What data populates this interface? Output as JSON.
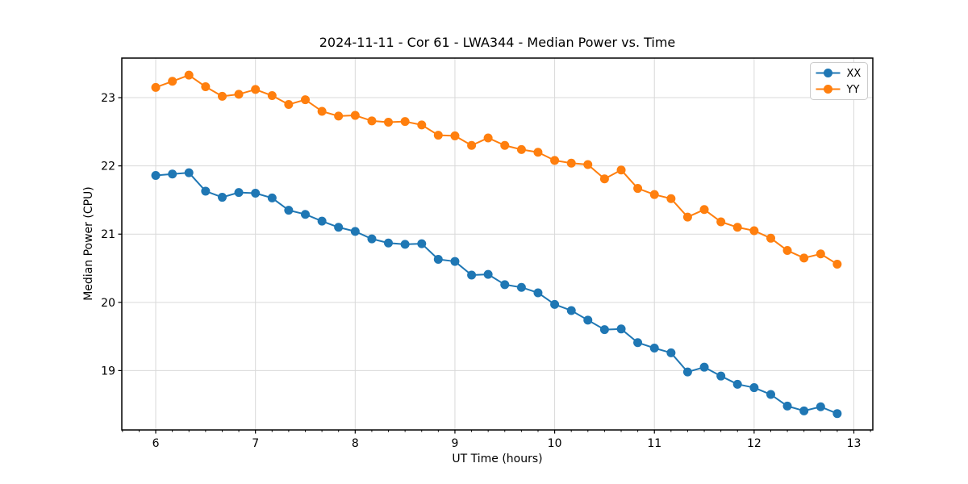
{
  "figure": {
    "title": "2024-11-11 - Cor 61 - LWA344 - Median Power vs. Time"
  },
  "chart_data": {
    "type": "line",
    "title": "2024-11-11 - Cor 61 - LWA344 - Median Power vs. Time",
    "xlabel": "UT Time (hours)",
    "ylabel": "Median Power (CPU)",
    "xlim": [
      5.66,
      13.19
    ],
    "ylim": [
      18.13,
      23.58
    ],
    "x_major_ticks": [
      6,
      7,
      8,
      9,
      10,
      11,
      12,
      13
    ],
    "x_minor_tick_step_hours": 0.16667,
    "y_major_ticks": [
      19,
      20,
      21,
      22,
      23
    ],
    "grid": true,
    "grid_color": "#d9d9d9",
    "legend_position": "upper right",
    "marker": "circle",
    "x": [
      6.0,
      6.167,
      6.333,
      6.5,
      6.667,
      6.833,
      7.0,
      7.167,
      7.333,
      7.5,
      7.667,
      7.833,
      8.0,
      8.167,
      8.333,
      8.5,
      8.667,
      8.833,
      9.0,
      9.167,
      9.333,
      9.5,
      9.667,
      9.833,
      10.0,
      10.167,
      10.333,
      10.5,
      10.667,
      10.833,
      11.0,
      11.167,
      11.333,
      11.5,
      11.667,
      11.833,
      12.0,
      12.167,
      12.333,
      12.5,
      12.667,
      12.833
    ],
    "series": [
      {
        "name": "XX",
        "color": "#1f77b4",
        "values": [
          21.86,
          21.88,
          21.9,
          21.63,
          21.54,
          21.61,
          21.6,
          21.53,
          21.35,
          21.29,
          21.19,
          21.1,
          21.04,
          20.93,
          20.87,
          20.85,
          20.86,
          20.63,
          20.6,
          20.4,
          20.41,
          20.26,
          20.22,
          20.14,
          19.97,
          19.88,
          19.74,
          19.6,
          19.61,
          19.41,
          19.33,
          19.26,
          18.98,
          19.05,
          18.92,
          18.8,
          18.75,
          18.65,
          18.48,
          18.41,
          18.47,
          18.37
        ]
      },
      {
        "name": "YY",
        "color": "#ff7f0e",
        "values": [
          23.15,
          23.24,
          23.33,
          23.16,
          23.02,
          23.05,
          23.12,
          23.03,
          22.9,
          22.97,
          22.8,
          22.73,
          22.74,
          22.66,
          22.64,
          22.65,
          22.6,
          22.45,
          22.44,
          22.3,
          22.41,
          22.3,
          22.24,
          22.2,
          22.08,
          22.04,
          22.02,
          21.81,
          21.94,
          21.67,
          21.58,
          21.52,
          21.25,
          21.36,
          21.18,
          21.1,
          21.05,
          20.94,
          20.76,
          20.65,
          20.71,
          20.56
        ]
      }
    ]
  }
}
